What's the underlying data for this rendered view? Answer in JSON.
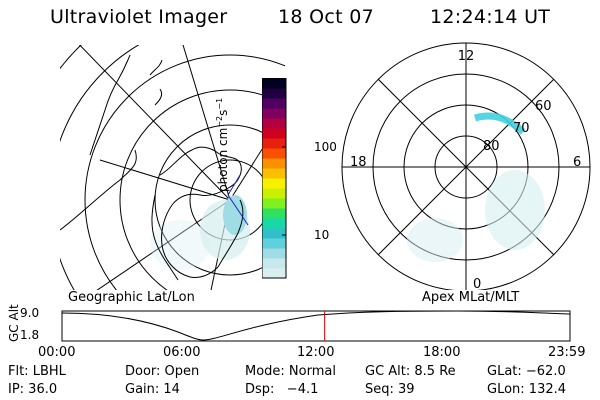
{
  "header": {
    "instrument": "Ultraviolet Imager",
    "date": "18 Oct 07",
    "time": "12:24:14 UT"
  },
  "left_map": {
    "caption": "Geographic Lat/Lon"
  },
  "right_map": {
    "caption": "Apex MLat/MLT",
    "mlt_labels": [
      "12",
      "18",
      "6",
      "0"
    ],
    "mlat_labels": [
      "60",
      "70",
      "80"
    ]
  },
  "colorbar": {
    "unit_main": "photon cm",
    "unit_exp1": "−2",
    "unit_s": "s",
    "unit_exp2": "−1",
    "ticks": [
      "100",
      "10"
    ],
    "colors": [
      "#d8eef0",
      "#c8e8ec",
      "#9fdce6",
      "#5fd0dc",
      "#2fc0c8",
      "#18d8a8",
      "#30e060",
      "#80f020",
      "#c8f000",
      "#f8f000",
      "#f8c000",
      "#f89000",
      "#f85000",
      "#e82010",
      "#d00020",
      "#b00040",
      "#800060",
      "#500060",
      "#200040",
      "#000020"
    ]
  },
  "timeline": {
    "axis_label": "GC Alt",
    "y_ticks": [
      "9.0",
      "1.8"
    ],
    "x_ticks": [
      "00:00",
      "06:00",
      "12:00",
      "18:00",
      "23:59"
    ],
    "current_time_fraction": 0.517,
    "marker_color": "#e00000"
  },
  "footer": {
    "row1": [
      "Flt: LBHL",
      "Door: Open",
      "Mode: Normal",
      "GC Alt: 8.5 Re",
      "GLat: −62.0"
    ],
    "row2": [
      "IP: 36.0",
      "Gain: 14",
      "Dsp:   −4.1",
      "Seq: 39",
      "GLon: 132.4"
    ]
  }
}
